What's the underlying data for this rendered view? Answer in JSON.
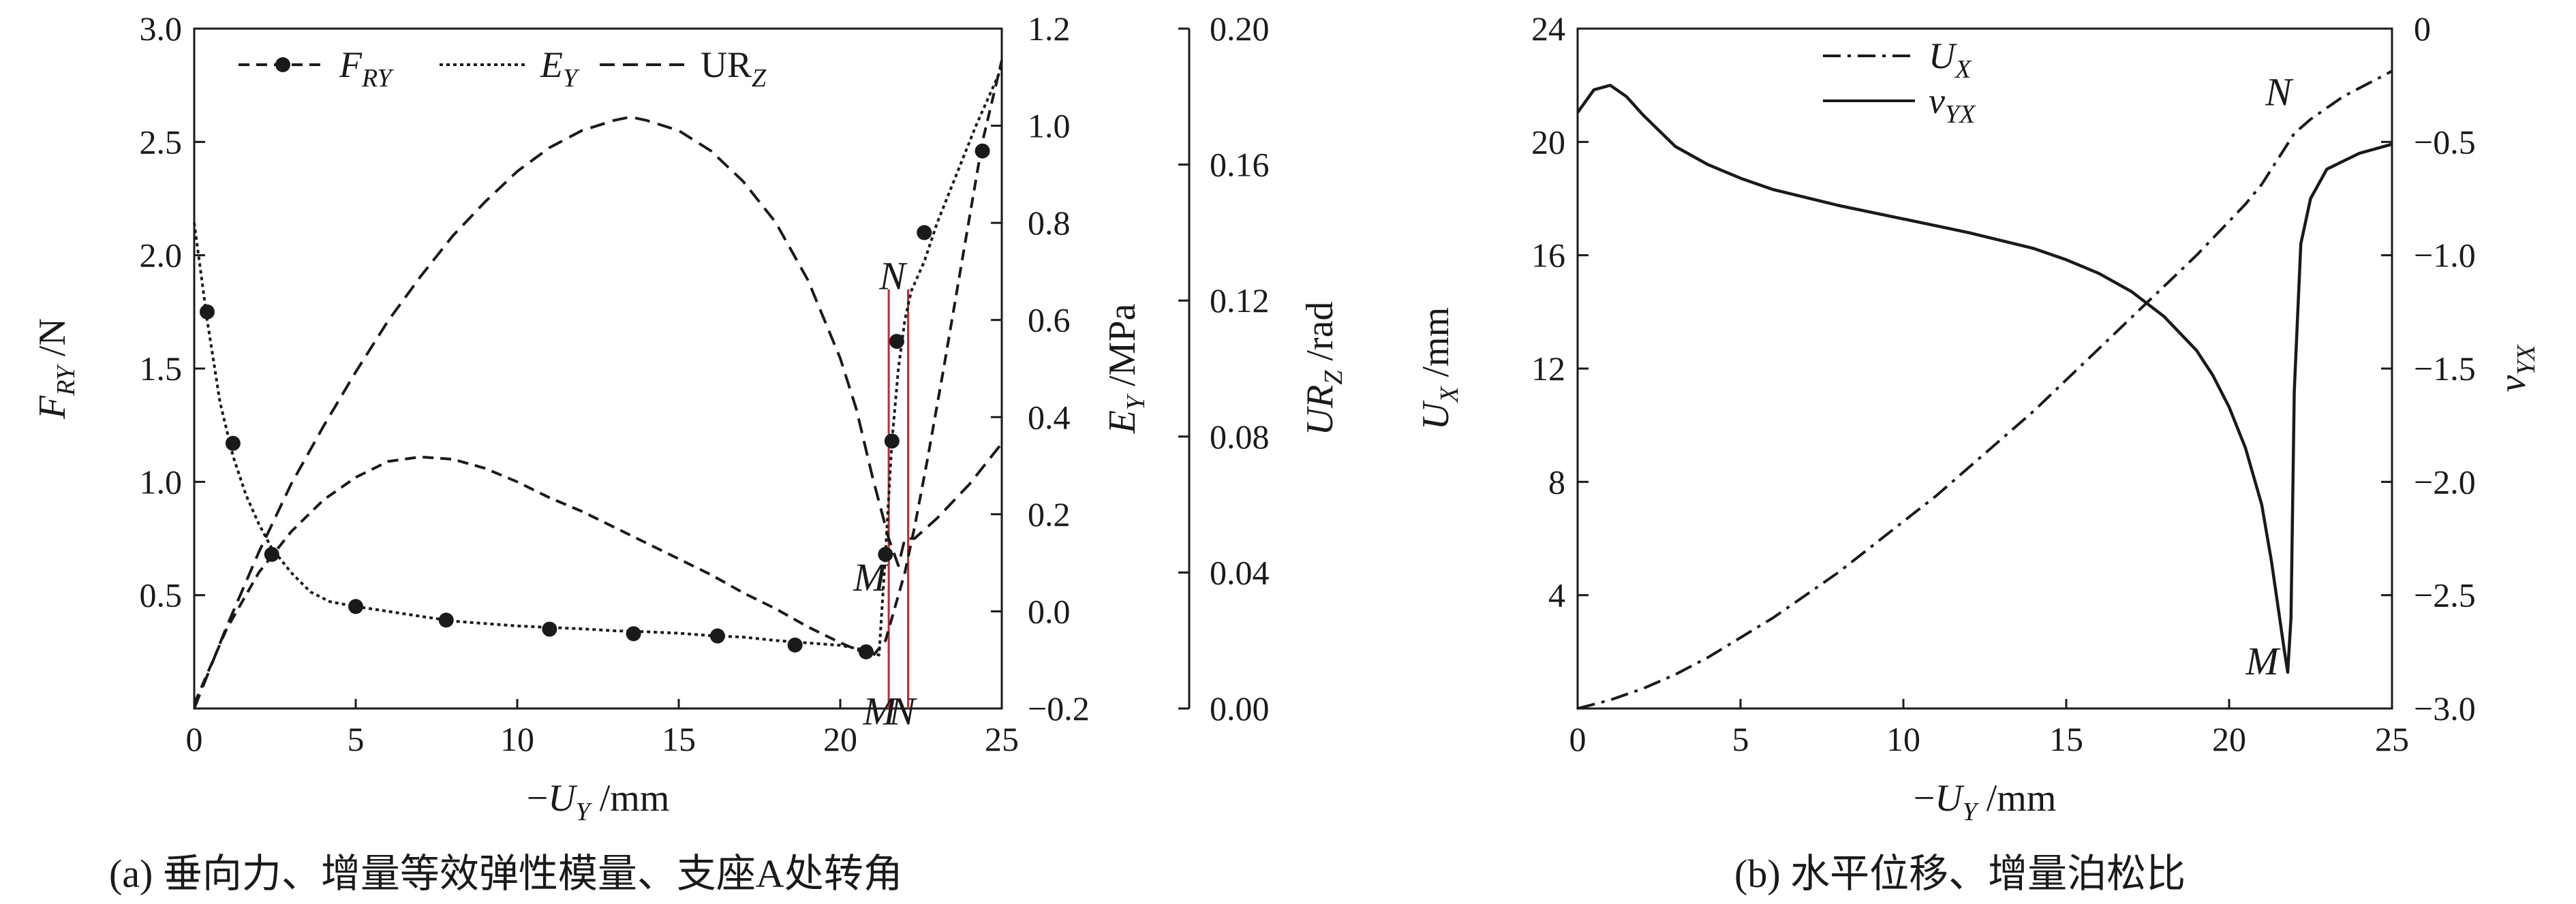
{
  "captions": {
    "a": "(a) 垂向力、增量等效弹性模量、支座A处转角",
    "b": "(b) 水平位移、增量泊松比"
  },
  "colors": {
    "line": "#1a1a1a",
    "marker_lines": "#e02020"
  },
  "chart_data": [
    {
      "type": "line",
      "panel": "a",
      "xlabel": "−U_Y /mm",
      "xlim": [
        0,
        25
      ],
      "x_ticks": [
        "0",
        "5",
        "10",
        "15",
        "20",
        "25"
      ],
      "axes": [
        {
          "id": "F",
          "label": "F_RY /N",
          "position": "left",
          "lim": [
            0.0,
            3.0
          ],
          "ticks": [
            "0.5",
            "1.0",
            "1.5",
            "2.0",
            "2.5",
            "3.0"
          ]
        },
        {
          "id": "E",
          "label": "E_Y /MPa",
          "position": "right",
          "lim": [
            -0.2,
            1.2
          ],
          "ticks": [
            "−0.2",
            "0.0",
            "0.2",
            "0.4",
            "0.6",
            "0.8",
            "1.0",
            "1.2"
          ]
        },
        {
          "id": "UR",
          "label": "UR_Z /rad",
          "position": "right-outer",
          "lim": [
            0.0,
            0.2
          ],
          "ticks": [
            "0.00",
            "0.04",
            "0.08",
            "0.12",
            "0.16",
            "0.20"
          ]
        }
      ],
      "legend": {
        "placement": "top",
        "entries": [
          "F_RY",
          "E_Y",
          "UR_Z"
        ]
      },
      "series": [
        {
          "name": "F_RY",
          "axis": "F",
          "style": "dashed-marker",
          "x": [
            0,
            1,
            2,
            3,
            4,
            5,
            6,
            7,
            8,
            9,
            10,
            11,
            12,
            13,
            14,
            15,
            16,
            17,
            18,
            19,
            20,
            21,
            21.4,
            21.7,
            22.0,
            22.3,
            22.7,
            23.2,
            23.8,
            24.4,
            25
          ],
          "y": [
            0.02,
            0.35,
            0.6,
            0.78,
            0.92,
            1.02,
            1.09,
            1.11,
            1.1,
            1.06,
            1.0,
            0.93,
            0.87,
            0.8,
            0.73,
            0.66,
            0.59,
            0.51,
            0.44,
            0.36,
            0.29,
            0.23,
            0.3,
            0.45,
            0.6,
            0.8,
            1.1,
            1.5,
            2.0,
            2.5,
            2.86
          ],
          "marker_x": [
            0.4,
            1.2,
            2.4,
            5.0,
            7.8,
            11.0,
            13.6,
            16.2,
            18.6,
            20.8,
            21.4,
            21.6,
            21.75,
            22.6,
            24.4
          ],
          "marker_y": [
            1.75,
            1.17,
            0.68,
            0.45,
            0.39,
            0.35,
            0.33,
            0.32,
            0.28,
            0.25,
            0.68,
            1.18,
            1.62,
            2.1,
            2.46
          ]
        },
        {
          "name": "E_Y",
          "axis": "E",
          "style": "dotted",
          "x": [
            0,
            0.4,
            0.8,
            1.2,
            1.6,
            2.0,
            2.4,
            3.0,
            3.6,
            4.2,
            5.0,
            6.0,
            7.0,
            8.0,
            9.0,
            10.0,
            11.0,
            12.0,
            13.0,
            14.0,
            15.0,
            16.0,
            17.0,
            18.0,
            19.0,
            20.0,
            20.8,
            21.2,
            21.4,
            21.6,
            21.8,
            22.0,
            22.2,
            22.6,
            23.0,
            23.6,
            24.2,
            25.0
          ],
          "y": [
            0.8,
            0.6,
            0.43,
            0.32,
            0.24,
            0.18,
            0.13,
            0.08,
            0.04,
            0.02,
            0.01,
            0.0,
            -0.01,
            -0.02,
            -0.025,
            -0.03,
            -0.033,
            -0.036,
            -0.04,
            -0.042,
            -0.045,
            -0.05,
            -0.053,
            -0.06,
            -0.065,
            -0.07,
            -0.08,
            -0.09,
            0.12,
            0.35,
            0.5,
            0.6,
            0.66,
            0.72,
            0.8,
            0.9,
            1.0,
            1.12
          ]
        },
        {
          "name": "UR_Z",
          "axis": "UR",
          "style": "dashed",
          "x": [
            0,
            0.5,
            1,
            1.5,
            2,
            3,
            4,
            5,
            6,
            7,
            8,
            9,
            10,
            11,
            12,
            13,
            13.5,
            14,
            15,
            16,
            17,
            18,
            19,
            20,
            20.5,
            21,
            21.5,
            21.8,
            22.0,
            22.3,
            23.0,
            24.0,
            25.0
          ],
          "y": [
            0.0,
            0.012,
            0.024,
            0.035,
            0.046,
            0.066,
            0.083,
            0.099,
            0.114,
            0.127,
            0.139,
            0.149,
            0.158,
            0.165,
            0.17,
            0.173,
            0.174,
            0.173,
            0.17,
            0.164,
            0.155,
            0.143,
            0.126,
            0.103,
            0.088,
            0.068,
            0.05,
            0.042,
            0.05,
            0.05,
            0.056,
            0.066,
            0.078
          ]
        }
      ],
      "annotations": [
        {
          "text": "N",
          "x": 21.7,
          "axis": "F",
          "y": 1.85
        },
        {
          "text": "M",
          "x": 21.0,
          "axis": "F",
          "y": 0.52
        },
        {
          "text": "M",
          "x": 21.3,
          "axis": "F",
          "y": -0.07
        },
        {
          "text": "N",
          "x": 22.0,
          "axis": "F",
          "y": -0.07
        }
      ],
      "vertical_lines_x": [
        21.5,
        22.1
      ]
    },
    {
      "type": "line",
      "panel": "b",
      "xlabel": "−U_Y /mm",
      "xlim": [
        0,
        25
      ],
      "x_ticks": [
        "0",
        "5",
        "10",
        "15",
        "20",
        "25"
      ],
      "axes": [
        {
          "id": "U",
          "label": "U_X /mm",
          "position": "left",
          "lim": [
            0,
            24
          ],
          "ticks": [
            "4",
            "8",
            "12",
            "16",
            "20",
            "24"
          ]
        },
        {
          "id": "V",
          "label": "v_YX",
          "position": "right",
          "lim": [
            -3.0,
            0
          ],
          "ticks": [
            "−3.0",
            "−2.5",
            "−2.0",
            "−1.5",
            "−1.0",
            "−0.5",
            "0"
          ]
        }
      ],
      "legend": {
        "placement": "top-left",
        "entries": [
          "U_X",
          "v_YX"
        ]
      },
      "series": [
        {
          "name": "U_X",
          "axis": "U",
          "style": "dashdot",
          "x": [
            0,
            1,
            2,
            3,
            4,
            5,
            6,
            7,
            8,
            9,
            10,
            11,
            12,
            13,
            14,
            15,
            16,
            17,
            18,
            19,
            20,
            20.5,
            21,
            21.5,
            22,
            22.5,
            23,
            23.5,
            24,
            24.5,
            25
          ],
          "y": [
            0.0,
            0.3,
            0.7,
            1.2,
            1.8,
            2.5,
            3.2,
            4.0,
            4.8,
            5.7,
            6.6,
            7.5,
            8.5,
            9.5,
            10.5,
            11.6,
            12.7,
            13.8,
            14.9,
            16.0,
            17.2,
            17.8,
            18.5,
            19.4,
            20.3,
            20.8,
            21.2,
            21.6,
            21.9,
            22.2,
            22.5
          ]
        },
        {
          "name": "v_YX",
          "axis": "V",
          "style": "solid",
          "x": [
            0,
            0.5,
            1,
            1.5,
            2,
            3,
            4,
            5,
            6,
            8,
            10,
            12,
            14,
            15,
            16,
            17,
            18,
            19,
            19.5,
            20,
            20.5,
            21,
            21.3,
            21.5,
            21.7,
            21.8,
            21.9,
            22.0,
            22.2,
            22.5,
            23,
            24,
            25
          ],
          "y": [
            -0.37,
            -0.27,
            -0.25,
            -0.3,
            -0.38,
            -0.52,
            -0.6,
            -0.66,
            -0.71,
            -0.78,
            -0.84,
            -0.9,
            -0.97,
            -1.02,
            -1.08,
            -1.16,
            -1.27,
            -1.42,
            -1.53,
            -1.67,
            -1.85,
            -2.1,
            -2.35,
            -2.55,
            -2.75,
            -2.84,
            -2.6,
            -1.6,
            -0.95,
            -0.75,
            -0.62,
            -0.55,
            -0.51
          ]
        }
      ],
      "annotations": [
        {
          "text": "N",
          "x": 21.6,
          "axis": "U",
          "y": 21.3
        },
        {
          "text": "M",
          "x": 21.1,
          "axis": "U",
          "y": 1.2
        }
      ]
    }
  ]
}
